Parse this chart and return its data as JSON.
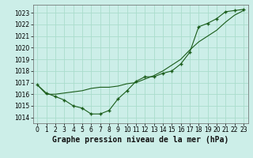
{
  "background_color": "#cceee8",
  "grid_color": "#aaddcc",
  "line_color": "#1a5c1a",
  "marker_color": "#1a5c1a",
  "xlabel": "Graphe pression niveau de la mer (hPa)",
  "ylim": [
    1013.5,
    1023.7
  ],
  "xlim": [
    -0.5,
    23.5
  ],
  "yticks": [
    1014,
    1015,
    1016,
    1017,
    1018,
    1019,
    1020,
    1021,
    1022,
    1023
  ],
  "xticks": [
    0,
    1,
    2,
    3,
    4,
    5,
    6,
    7,
    8,
    9,
    10,
    11,
    12,
    13,
    14,
    15,
    16,
    17,
    18,
    19,
    20,
    21,
    22,
    23
  ],
  "series1_x": [
    0,
    1,
    2,
    3,
    4,
    5,
    6,
    7,
    8,
    9,
    10,
    11,
    12,
    13,
    14,
    15,
    16,
    17,
    18,
    19,
    20,
    21,
    22,
    23
  ],
  "series1_y": [
    1016.8,
    1016.1,
    1015.8,
    1015.5,
    1015.0,
    1014.8,
    1014.3,
    1014.3,
    1014.6,
    1015.6,
    1016.3,
    1017.1,
    1017.5,
    1017.5,
    1017.8,
    1018.0,
    1018.6,
    1019.6,
    1021.8,
    1022.1,
    1022.5,
    1023.1,
    1023.2,
    1023.3
  ],
  "series2_x": [
    0,
    1,
    2,
    3,
    4,
    5,
    6,
    7,
    8,
    9,
    10,
    11,
    12,
    13,
    14,
    15,
    16,
    17,
    18,
    19,
    20,
    21,
    22,
    23
  ],
  "series2_y": [
    1016.8,
    1016.0,
    1016.0,
    1016.1,
    1016.2,
    1016.3,
    1016.5,
    1016.6,
    1016.6,
    1016.7,
    1016.9,
    1017.0,
    1017.3,
    1017.6,
    1018.0,
    1018.5,
    1019.0,
    1019.8,
    1020.5,
    1021.0,
    1021.5,
    1022.2,
    1022.8,
    1023.2
  ],
  "title_fontsize": 7,
  "tick_fontsize": 5.5
}
